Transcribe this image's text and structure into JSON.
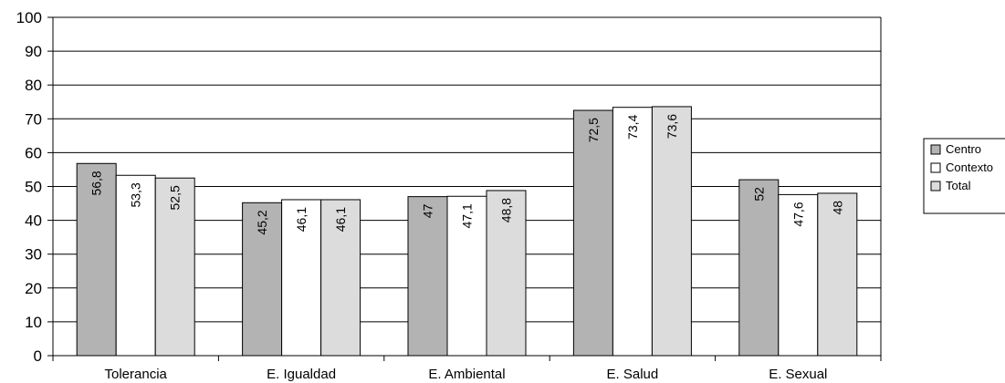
{
  "chart_data": {
    "type": "bar",
    "title": "",
    "xlabel": "",
    "ylabel": "",
    "categories": [
      "Tolerancia",
      "E. Igualdad",
      "E. Ambiental",
      "E. Salud",
      "E. Sexual"
    ],
    "series": [
      {
        "name": "Centro",
        "color": "#b3b3b3",
        "values": [
          56.8,
          45.2,
          47,
          72.5,
          52
        ],
        "labels": [
          "56,8",
          "45,2",
          "47",
          "72,5",
          "52"
        ]
      },
      {
        "name": "Contexto",
        "color": "#ffffff",
        "values": [
          53.3,
          46.1,
          47.1,
          73.4,
          47.6
        ],
        "labels": [
          "53,3",
          "46,1",
          "47,1",
          "73,4",
          "47,6"
        ]
      },
      {
        "name": "Total",
        "color": "#dcdcdc",
        "values": [
          52.5,
          46.1,
          48.8,
          73.6,
          48
        ],
        "labels": [
          "52,5",
          "46,1",
          "48,8",
          "73,6",
          "48"
        ]
      }
    ],
    "ylim": [
      0,
      100
    ],
    "yticks": [
      0,
      10,
      20,
      30,
      40,
      50,
      60,
      70,
      80,
      90,
      100
    ],
    "grid": true,
    "legend_position": "right"
  }
}
